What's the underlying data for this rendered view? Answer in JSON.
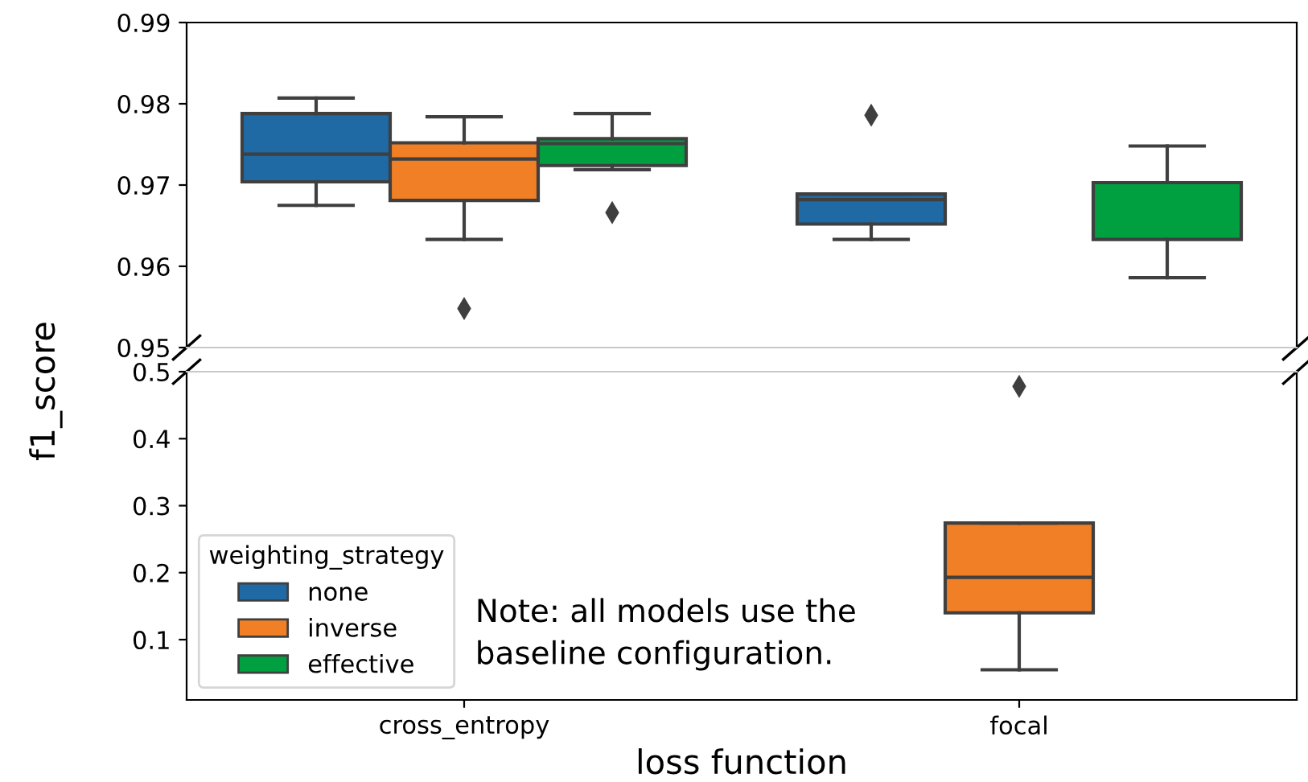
{
  "chart_data": [
    {
      "type": "box",
      "categories": [
        null,
        null
      ],
      "ylabel": "f1_score",
      "ylim": [
        0.95,
        0.99
      ],
      "yticks": [
        0.95,
        0.96,
        0.97,
        0.98,
        0.99
      ],
      "tick_labels": "y",
      "grid": false,
      "series": [
        {
          "color": "#1f6aa5",
          "boxes": [
            {
              "low": 0.9675,
              "q1": 0.9704,
              "median": 0.9738,
              "q3": 0.9788,
              "high": 0.9807
            },
            {
              "low": 0.9633,
              "q1": 0.9652,
              "median": 0.9682,
              "q3": 0.9689,
              "high": 0.9689,
              "outliers": [
                0.9786
              ]
            }
          ]
        },
        {
          "color": "#f07f26",
          "boxes": [
            {
              "low": 0.9633,
              "q1": 0.9681,
              "median": 0.9732,
              "q3": 0.9752,
              "high": 0.9784,
              "outliers": [
                0.9548
              ]
            },
            null
          ]
        },
        {
          "color": "#00a040",
          "boxes": [
            {
              "low": 0.9719,
              "q1": 0.9724,
              "median": 0.9751,
              "q3": 0.9757,
              "high": 0.9788,
              "outliers": [
                0.9666
              ]
            },
            {
              "low": 0.9586,
              "q1": 0.9633,
              "median": 0.9703,
              "q3": 0.9703,
              "high": 0.9748
            }
          ]
        }
      ]
    },
    {
      "type": "box",
      "categories": [
        "cross_entropy",
        "focal"
      ],
      "xlabel": "loss function",
      "ylim": [
        0.01,
        0.5
      ],
      "yticks": [
        0.1,
        0.2,
        0.3,
        0.4,
        0.5
      ],
      "grid": false,
      "legend": "bottom left",
      "legend_title": "weighting_strategy",
      "annotations": [
        "Note: all models use the\nbaseline configuration."
      ],
      "series": [
        {
          "name": "none",
          "color": "#1f6aa5",
          "boxes": [
            null,
            null
          ]
        },
        {
          "name": "inverse",
          "color": "#f07f26",
          "boxes": [
            null,
            {
              "low": 0.055,
              "q1": 0.14,
              "median": 0.193,
              "q3": 0.274,
              "high": 0.274,
              "outliers": [
                0.478
              ]
            }
          ]
        },
        {
          "name": "effective",
          "color": "#00a040",
          "boxes": [
            null,
            null
          ]
        }
      ]
    }
  ]
}
